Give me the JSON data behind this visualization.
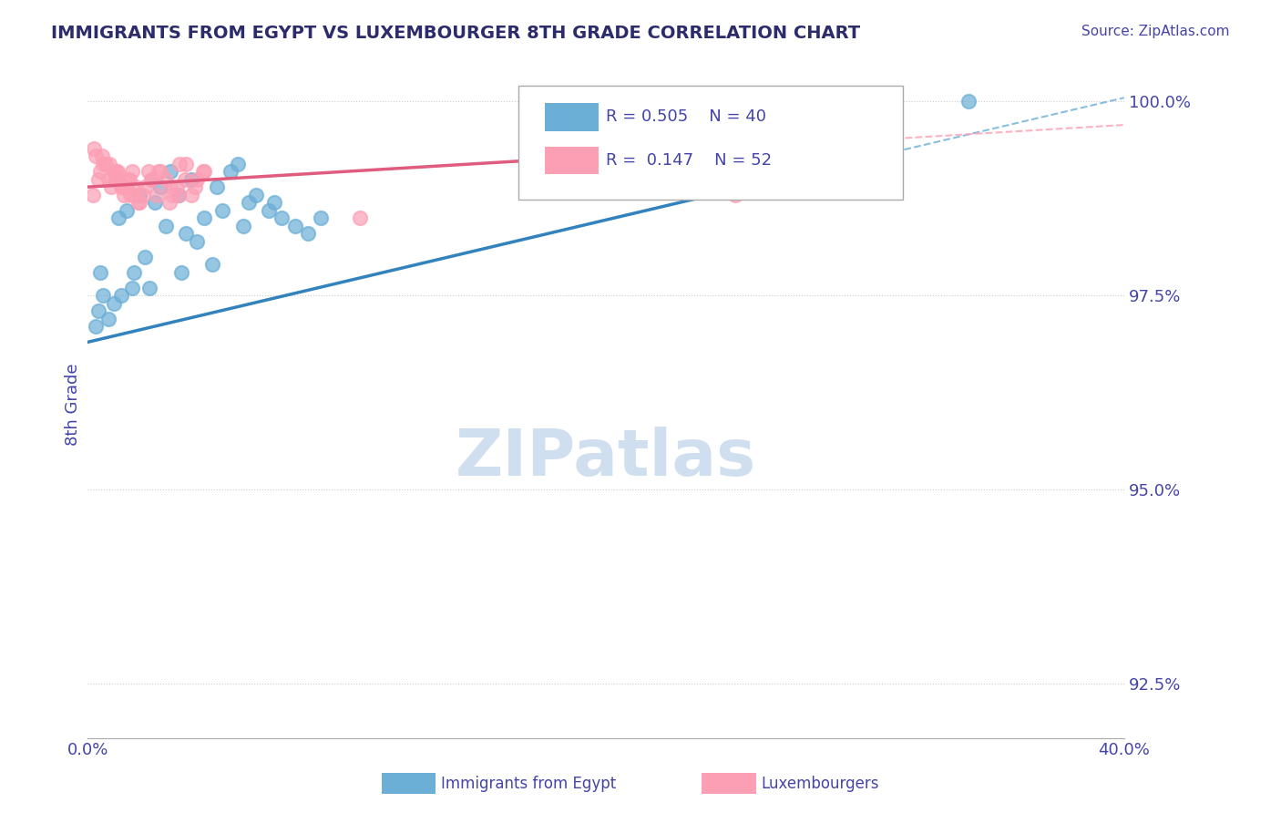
{
  "title": "IMMIGRANTS FROM EGYPT VS LUXEMBOURGER 8TH GRADE CORRELATION CHART",
  "source": "Source: ZipAtlas.com",
  "ylabel": "8th Grade",
  "xlim": [
    0.0,
    40.0
  ],
  "ylim": [
    91.8,
    100.4
  ],
  "yticks": [
    92.5,
    95.0,
    97.5,
    100.0
  ],
  "ytick_labels": [
    "92.5%",
    "95.0%",
    "97.5%",
    "100.0%"
  ],
  "legend_blue_r": "R = 0.505",
  "legend_blue_n": "N = 40",
  "legend_pink_r": "R =  0.147",
  "legend_pink_n": "N = 52",
  "blue_color": "#6baed6",
  "pink_color": "#fc9fb5",
  "blue_line_color": "#3182bd",
  "pink_line_color": "#e05c7e",
  "title_color": "#2c2c6c",
  "axis_color": "#4444aa",
  "grid_color": "#cccccc",
  "watermark_color": "#d0dff0",
  "blue_scatter_x": [
    0.4,
    0.6,
    1.2,
    1.5,
    2.0,
    2.5,
    2.8,
    3.2,
    3.5,
    4.0,
    4.5,
    5.0,
    5.5,
    5.8,
    6.2,
    7.0,
    7.5,
    8.0,
    8.5,
    9.0,
    1.8,
    2.2,
    3.0,
    4.2,
    5.2,
    6.0,
    0.8,
    1.0,
    2.6,
    3.8,
    6.5,
    7.2,
    0.5,
    1.3,
    2.4,
    3.6,
    4.8,
    0.3,
    1.7,
    34.0
  ],
  "blue_scatter_y": [
    97.3,
    97.5,
    98.5,
    98.6,
    98.8,
    99.0,
    98.9,
    99.1,
    98.8,
    99.0,
    98.5,
    98.9,
    99.1,
    99.2,
    98.7,
    98.6,
    98.5,
    98.4,
    98.3,
    98.5,
    97.8,
    98.0,
    98.4,
    98.2,
    98.6,
    98.4,
    97.2,
    97.4,
    98.7,
    98.3,
    98.8,
    98.7,
    97.8,
    97.5,
    97.6,
    97.8,
    97.9,
    97.1,
    97.6,
    100.0
  ],
  "pink_scatter_x": [
    0.2,
    0.4,
    0.5,
    0.6,
    0.8,
    0.9,
    1.0,
    1.1,
    1.2,
    1.3,
    1.4,
    1.5,
    1.6,
    1.7,
    1.8,
    2.0,
    2.2,
    2.5,
    2.8,
    3.0,
    3.2,
    3.5,
    3.8,
    4.0,
    4.2,
    4.5,
    0.3,
    0.7,
    1.05,
    1.35,
    1.65,
    1.95,
    2.35,
    2.65,
    3.15,
    3.45,
    3.75,
    4.15,
    4.45,
    0.25,
    0.55,
    0.85,
    1.15,
    1.55,
    1.85,
    2.15,
    2.45,
    2.75,
    3.25,
    3.55,
    10.5,
    25.0
  ],
  "pink_scatter_y": [
    98.8,
    99.0,
    99.1,
    99.2,
    99.0,
    98.9,
    99.1,
    99.1,
    99.0,
    98.9,
    98.8,
    98.9,
    99.0,
    99.1,
    98.8,
    98.7,
    98.9,
    99.0,
    99.1,
    99.0,
    98.9,
    98.8,
    99.2,
    98.8,
    99.0,
    99.1,
    99.3,
    99.2,
    99.0,
    98.9,
    98.8,
    98.7,
    99.1,
    98.8,
    98.7,
    98.9,
    99.0,
    98.9,
    99.1,
    99.4,
    99.3,
    99.2,
    99.1,
    99.0,
    98.9,
    98.8,
    99.0,
    99.1,
    98.8,
    99.2,
    98.5,
    98.8
  ],
  "blue_trend_x": [
    0.0,
    40.0
  ],
  "blue_trend_y": [
    96.9,
    100.05
  ],
  "pink_trend_x": [
    0.0,
    40.0
  ],
  "pink_trend_y": [
    98.9,
    99.7
  ]
}
